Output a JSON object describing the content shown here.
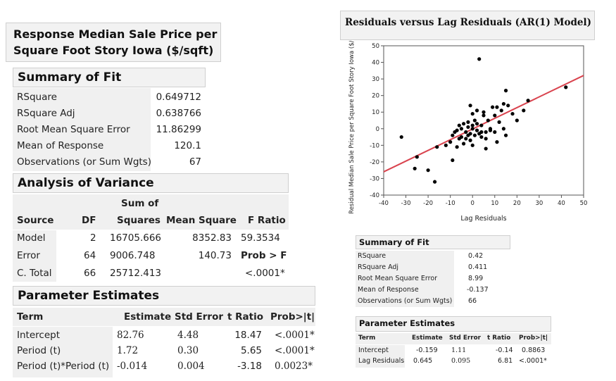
{
  "response_title": "Response Median Sale Price per Square Foot Story Iowa  ($/sqft)",
  "response_title_lines": [
    "Response Median Sale Price per",
    "Square Foot Story Iowa  ($/sqft)"
  ],
  "summary_fit": {
    "title": "Summary of Fit",
    "rows": [
      {
        "label": "RSquare",
        "value": "0.649712"
      },
      {
        "label": "RSquare Adj",
        "value": "0.638766"
      },
      {
        "label": "Root Mean Square Error",
        "value": "11.86299"
      },
      {
        "label": "Mean of Response",
        "value": "120.1"
      },
      {
        "label": "Observations (or Sum Wgts)",
        "value": "67"
      }
    ]
  },
  "anova": {
    "title": "Analysis of Variance",
    "header_top": "Sum of",
    "headers": [
      "Source",
      "DF",
      "Squares",
      "Mean Square",
      "F Ratio"
    ],
    "rows": [
      {
        "source": "Model",
        "df": "2",
        "ss": "16705.666",
        "ms": "8352.83",
        "f": "59.3534"
      },
      {
        "source": "Error",
        "df": "64",
        "ss": "9006.748",
        "ms": "140.73",
        "f": "Prob > F"
      },
      {
        "source": "C. Total",
        "df": "66",
        "ss": "25712.413",
        "ms": "",
        "f": "<.0001*"
      }
    ]
  },
  "params": {
    "title": "Parameter Estimates",
    "headers": [
      "Term",
      "Estimate",
      "Std Error",
      "t Ratio",
      "Prob>|t|"
    ],
    "rows": [
      {
        "term": "Intercept",
        "est": "82.76",
        "se": "4.48",
        "t": "18.47",
        "p": "<.0001*"
      },
      {
        "term": "Period (t)",
        "est": "1.72",
        "se": "0.30",
        "t": "5.65",
        "p": "<.0001*"
      },
      {
        "term": "Period (t)*Period (t)",
        "est": "-0.014",
        "se": "0.004",
        "t": "-3.18",
        "p": "0.0023*"
      }
    ]
  },
  "plot_title": "Residuals versus Lag Residuals (AR(1) Model)",
  "summary_fit2": {
    "title": "Summary of Fit",
    "rows": [
      {
        "label": "RSquare",
        "value": "0.42"
      },
      {
        "label": "RSquare Adj",
        "value": "0.411"
      },
      {
        "label": "Root Mean Square Error",
        "value": "8.99"
      },
      {
        "label": "Mean of Response",
        "value": "-0.137"
      },
      {
        "label": "Observations (or Sum Wgts)",
        "value": "66"
      }
    ]
  },
  "params2": {
    "title": "Parameter Estimates",
    "headers": [
      "Term",
      "Estimate",
      "Std Error",
      "t Ratio",
      "Prob>|t|"
    ],
    "rows": [
      {
        "term": "Intercept",
        "est": "-0.159",
        "se": "1.11",
        "t": "-0.14",
        "p": "0.8863"
      },
      {
        "term": "Lag Residuals",
        "est": "0.645",
        "se": "0.095",
        "t": "6.81",
        "p": "<.0001*"
      }
    ]
  },
  "colors": {
    "fit_line": "#d9434e",
    "points": "#000000",
    "panel_bg": "#f2f2f2"
  },
  "chart_data": {
    "type": "scatter",
    "title": "Residuals versus Lag Residuals (AR(1) Model)",
    "xlabel": "Lag Residuals",
    "ylabel": "Residual Median Sale Price per Square Foot Story Iowa  ($/sqft)",
    "xlim": [
      -40,
      50
    ],
    "ylim": [
      -40,
      50
    ],
    "xticks": [
      "-40",
      "-30",
      "-20",
      "-10",
      "0",
      "10",
      "20",
      "30",
      "40",
      "50"
    ],
    "yticks": [
      "50",
      "40",
      "30",
      "20",
      "10",
      "0",
      "-10",
      "-20",
      "-30",
      "-40"
    ],
    "fit_line": {
      "intercept": -0.159,
      "slope": 0.645
    },
    "points": [
      [
        -32,
        -5
      ],
      [
        -25,
        -17
      ],
      [
        -26,
        -24
      ],
      [
        -20,
        -25
      ],
      [
        -17,
        -32
      ],
      [
        -16,
        -11
      ],
      [
        -12,
        -10
      ],
      [
        -10,
        -8
      ],
      [
        -9,
        -19
      ],
      [
        -9,
        -4
      ],
      [
        -8,
        -2
      ],
      [
        -7,
        -1
      ],
      [
        -7,
        -11
      ],
      [
        -6,
        -6
      ],
      [
        -6,
        2
      ],
      [
        -5,
        -5
      ],
      [
        -5,
        0
      ],
      [
        -4,
        -9
      ],
      [
        -4,
        3
      ],
      [
        -3,
        -2
      ],
      [
        -3,
        -6
      ],
      [
        -2,
        -4
      ],
      [
        -2,
        1
      ],
      [
        -2,
        4
      ],
      [
        -1,
        -7
      ],
      [
        -1,
        14
      ],
      [
        -1,
        -3
      ],
      [
        0,
        0
      ],
      [
        0,
        2
      ],
      [
        0,
        -10
      ],
      [
        0,
        9
      ],
      [
        1,
        -4
      ],
      [
        1,
        5
      ],
      [
        2,
        -1
      ],
      [
        2,
        3
      ],
      [
        2,
        11
      ],
      [
        3,
        -3
      ],
      [
        4,
        -5
      ],
      [
        4,
        2
      ],
      [
        4,
        -2
      ],
      [
        3,
        42
      ],
      [
        5,
        8
      ],
      [
        5,
        10
      ],
      [
        6,
        -2
      ],
      [
        6,
        -6
      ],
      [
        6,
        -12
      ],
      [
        7,
        5
      ],
      [
        8,
        0
      ],
      [
        8,
        -1
      ],
      [
        9,
        13
      ],
      [
        10,
        -2
      ],
      [
        10,
        8
      ],
      [
        11,
        13
      ],
      [
        11,
        -8
      ],
      [
        12,
        4
      ],
      [
        13,
        11
      ],
      [
        14,
        15
      ],
      [
        14,
        0
      ],
      [
        15,
        -4
      ],
      [
        15,
        23
      ],
      [
        16,
        14
      ],
      [
        18,
        9
      ],
      [
        20,
        5
      ],
      [
        23,
        11
      ],
      [
        25,
        17
      ],
      [
        42,
        25
      ]
    ]
  }
}
